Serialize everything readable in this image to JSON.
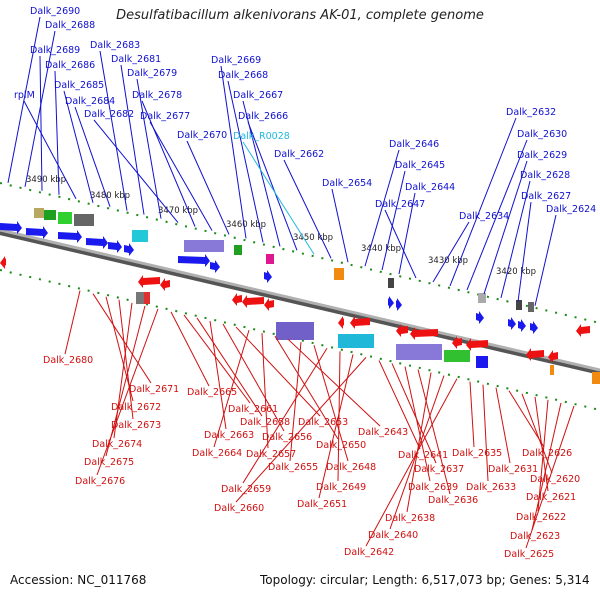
{
  "title": "Desulfatibacillum alkenivorans AK-01, complete genome",
  "footer": {
    "accession": "Accession: NC_011768",
    "summary": "Topology: circular; Length: 6,517,073 bp; Genes: 5,314"
  },
  "colors": {
    "forward_label": "#1010d0",
    "reverse_label": "#d01010",
    "rna_label": "#20b8e0",
    "backbone": "#8a8a8a"
  },
  "kbp_ticks": [
    "3490 kbp",
    "3480 kbp",
    "3470 kbp",
    "3460 kbp",
    "3450 kbp",
    "3440 kbp",
    "3430 kbp",
    "3420 kbp"
  ],
  "forward_genes": [
    "Dalk_2690",
    "Dalk_2688",
    "Dalk_2689",
    "Dalk_2686",
    "rplM",
    "Dalk_2685",
    "Dalk_2684",
    "Dalk_2683",
    "Dalk_2681",
    "Dalk_2679",
    "Dalk_2682",
    "Dalk_2678",
    "Dalk_2677",
    "Dalk_2670",
    "Dalk_2669",
    "Dalk_2668",
    "Dalk_2667",
    "Dalk_2666",
    "Dalk_R0028",
    "Dalk_2662",
    "Dalk_2654",
    "Dalk_2646",
    "Dalk_2645",
    "Dalk_2644",
    "Dalk_2647",
    "Dalk_2634",
    "Dalk_2632",
    "Dalk_2630",
    "Dalk_2629",
    "Dalk_2628",
    "Dalk_2627",
    "Dalk_2624"
  ],
  "reverse_genes": [
    "Dalk_2680",
    "Dalk_2671",
    "Dalk_2672",
    "Dalk_2673",
    "Dalk_2674",
    "Dalk_2675",
    "Dalk_2676",
    "Dalk_2665",
    "Dalk_2661",
    "Dalk_2658",
    "Dalk_2663",
    "Dalk_2656",
    "Dalk_2653",
    "Dalk_2664",
    "Dalk_2657",
    "Dalk_2650",
    "Dalk_2643",
    "Dalk_2655",
    "Dalk_2648",
    "Dalk_2659",
    "Dalk_2649",
    "Dalk_2651",
    "Dalk_2660",
    "Dalk_2641",
    "Dalk_2637",
    "Dalk_2639",
    "Dalk_2636",
    "Dalk_2638",
    "Dalk_2640",
    "Dalk_2642",
    "Dalk_2635",
    "Dalk_2633",
    "Dalk_2631",
    "Dalk_2626",
    "Dalk_2620",
    "Dalk_2621",
    "Dalk_2622",
    "Dalk_2623",
    "Dalk_2625"
  ]
}
